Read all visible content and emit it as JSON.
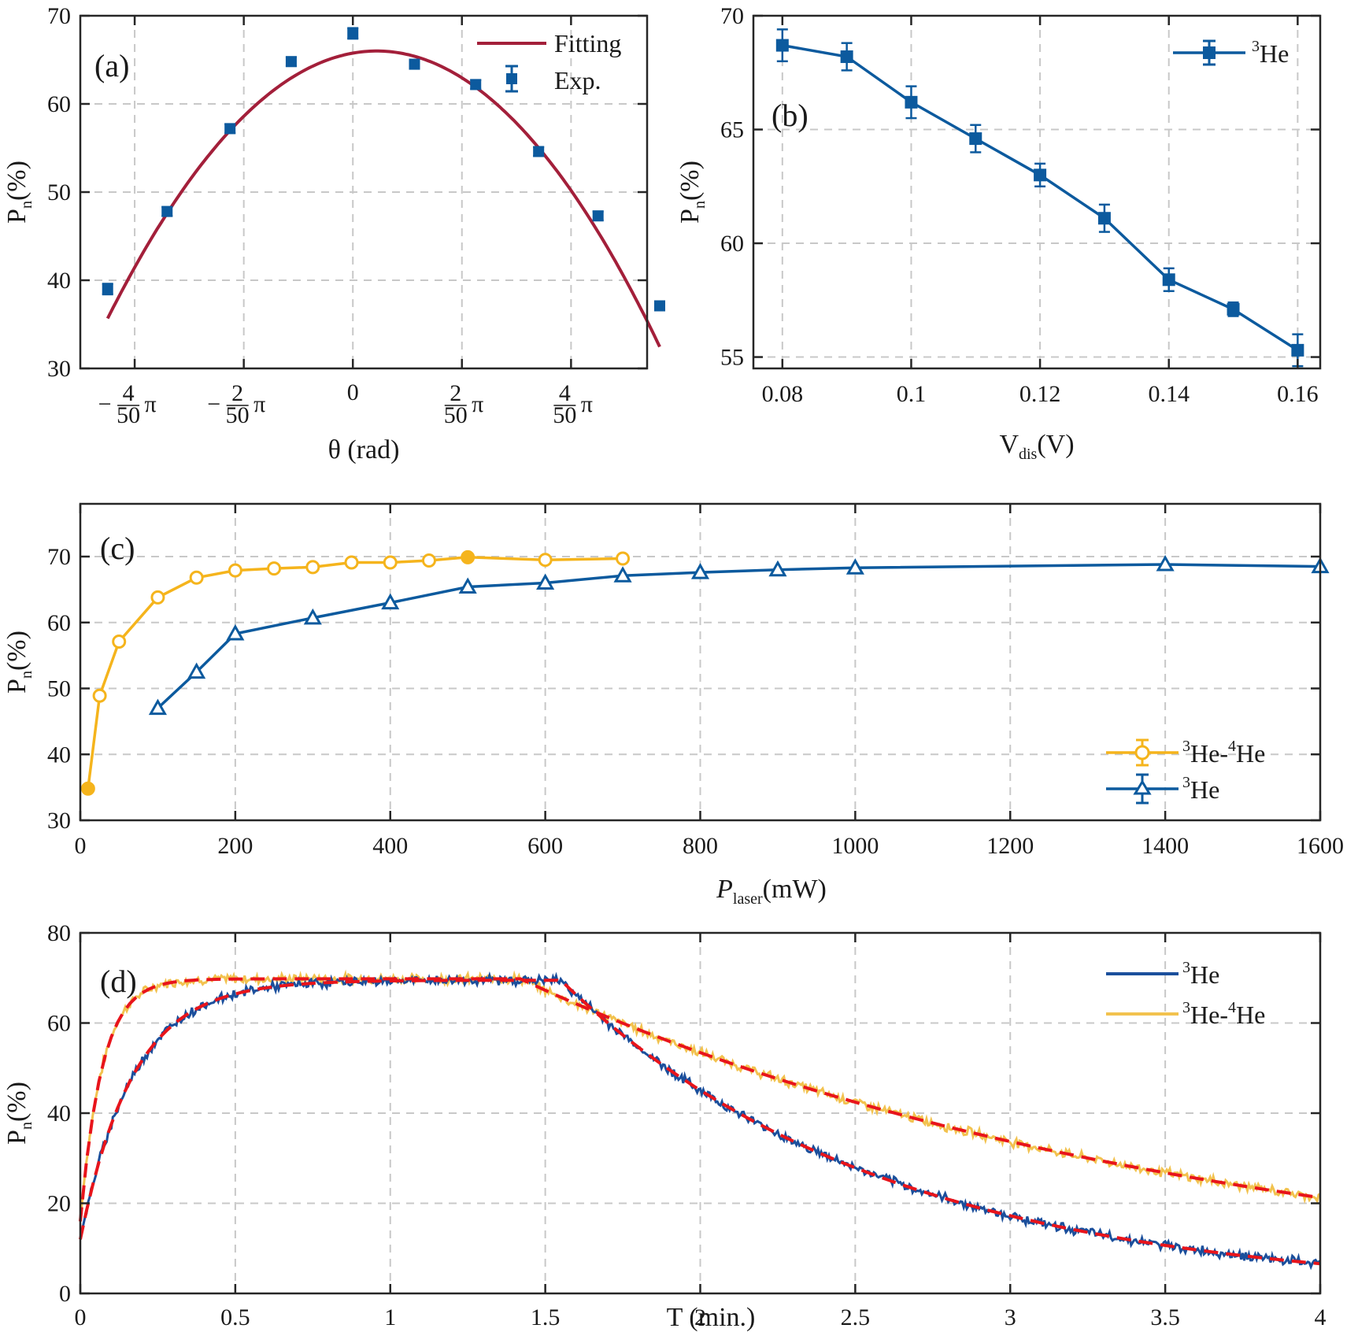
{
  "chart_data": [
    {
      "id": "a",
      "type": "scatter",
      "panel_label": "(a)",
      "xlabel": "θ (rad)",
      "ylabel": "Pn(%)",
      "xlim": [
        -0.0628,
        0.0678
      ],
      "ylim": [
        30,
        70
      ],
      "yticks": [
        30,
        40,
        50,
        60,
        70
      ],
      "xticks": [
        {
          "value": -0.05027,
          "sign": "−",
          "num": "4",
          "den": "50",
          "sym": "π"
        },
        {
          "value": -0.02513,
          "sign": "−",
          "num": "2",
          "den": "50",
          "sym": "π"
        },
        {
          "value": 0,
          "text": "0"
        },
        {
          "value": 0.02513,
          "sign": "",
          "num": "2",
          "den": "50",
          "sym": "π"
        },
        {
          "value": 0.05027,
          "sign": "",
          "num": "4",
          "den": "50",
          "sym": "π"
        }
      ],
      "legend": [
        "Fitting",
        "Exp."
      ],
      "series": [
        {
          "name": "Exp.",
          "style": "errorbar-square",
          "color": "#0c5a9e",
          "x": [
            -0.0565,
            -0.0428,
            -0.0283,
            -0.0142,
            0.0,
            0.0142,
            0.0283,
            0.0428,
            0.0565,
            0.0707
          ],
          "y": [
            39.0,
            47.8,
            57.2,
            64.8,
            68.0,
            64.5,
            62.2,
            54.6,
            47.3,
            37.1
          ],
          "err": [
            0.6,
            0.5,
            0.5,
            0.5,
            0.6,
            0.5,
            0.5,
            0.5,
            0.5,
            0.5
          ]
        },
        {
          "name": "Fitting",
          "style": "line",
          "color": "#a31f3a",
          "vertex_x": 0.0055,
          "vertex_y": 66.0,
          "curvature": 7890,
          "x_range": [
            -0.0565,
            0.0707
          ]
        }
      ]
    },
    {
      "id": "b",
      "type": "line",
      "panel_label": "(b)",
      "xlabel": "Vdis(V)",
      "ylabel": "Pn(%)",
      "xlim": [
        0.0755,
        0.1635
      ],
      "ylim": [
        54.5,
        70
      ],
      "xticks": [
        0.08,
        0.1,
        0.12,
        0.14,
        0.16
      ],
      "xtick_labels": [
        "0.08",
        "0.1",
        "0.12",
        "0.14",
        "0.16"
      ],
      "yticks": [
        55,
        60,
        65,
        70
      ],
      "legend": [
        "3He"
      ],
      "series": [
        {
          "name": "3He",
          "color": "#0c5a9e",
          "marker": "square",
          "x": [
            0.08,
            0.09,
            0.1,
            0.11,
            0.12,
            0.13,
            0.14,
            0.15,
            0.16
          ],
          "y": [
            68.7,
            68.2,
            66.2,
            64.6,
            63.0,
            61.1,
            58.4,
            57.1,
            55.3
          ],
          "err": [
            0.7,
            0.6,
            0.7,
            0.6,
            0.5,
            0.6,
            0.5,
            0.3,
            0.7
          ]
        }
      ]
    },
    {
      "id": "c",
      "type": "line",
      "panel_label": "(c)",
      "xlabel": "Plaser(mW)",
      "ylabel": "Pn(%)",
      "xlim": [
        0,
        1600
      ],
      "ylim": [
        30,
        78
      ],
      "xticks": [
        0,
        200,
        400,
        600,
        800,
        1000,
        1200,
        1400,
        1600
      ],
      "yticks": [
        30,
        40,
        50,
        60,
        70
      ],
      "legend": [
        "3He-4He",
        "3He"
      ],
      "series": [
        {
          "name": "3He-4He",
          "color": "#f5b41c",
          "marker": "circle",
          "x": [
            10,
            25,
            50,
            100,
            150,
            200,
            250,
            300,
            350,
            400,
            450,
            500,
            600,
            700
          ],
          "y": [
            34.8,
            48.9,
            57.1,
            63.8,
            66.8,
            67.9,
            68.2,
            68.4,
            69.1,
            69.1,
            69.4,
            69.9,
            69.5,
            69.7
          ]
        },
        {
          "name": "3He",
          "color": "#0c5a9e",
          "marker": "triangle",
          "x": [
            100,
            150,
            200,
            300,
            400,
            500,
            600,
            700,
            800,
            900,
            1000,
            1400,
            1600
          ],
          "y": [
            47.0,
            52.5,
            58.3,
            60.7,
            63.0,
            65.4,
            66.0,
            67.1,
            67.6,
            68.0,
            68.3,
            68.8,
            68.5
          ]
        }
      ]
    },
    {
      "id": "d",
      "type": "line",
      "panel_label": "(d)",
      "xlabel": "T (min.)",
      "ylabel": "Pn(%)",
      "xlim": [
        0,
        4
      ],
      "ylim": [
        0,
        80
      ],
      "xticks": [
        0,
        0.5,
        1,
        1.5,
        2,
        2.5,
        3,
        3.5,
        4
      ],
      "xtick_labels": [
        "0",
        "0.5",
        "1",
        "1.5",
        "2",
        "2.5",
        "3",
        "3.5",
        "4"
      ],
      "yticks": [
        0,
        20,
        40,
        60,
        80
      ],
      "legend": [
        "3He",
        "3He-4He"
      ],
      "series": [
        {
          "name": "3He",
          "color": "#1b4f9c",
          "rise": {
            "start": 12,
            "plateau": 69.5,
            "tau": 0.17,
            "until": 1.55
          },
          "decay": {
            "from": 1.55,
            "start": 69.5,
            "tau": 1.04
          }
        },
        {
          "name": "3He-4He",
          "color": "#f2c24e",
          "rise": {
            "start": 16,
            "plateau": 69.8,
            "tau": 0.07,
            "until": 1.42
          },
          "decay": {
            "from": 1.42,
            "start": 69.8,
            "tau": 2.17
          }
        },
        {
          "name": "fit",
          "color": "#e8141b",
          "style": "dashed"
        }
      ]
    }
  ]
}
